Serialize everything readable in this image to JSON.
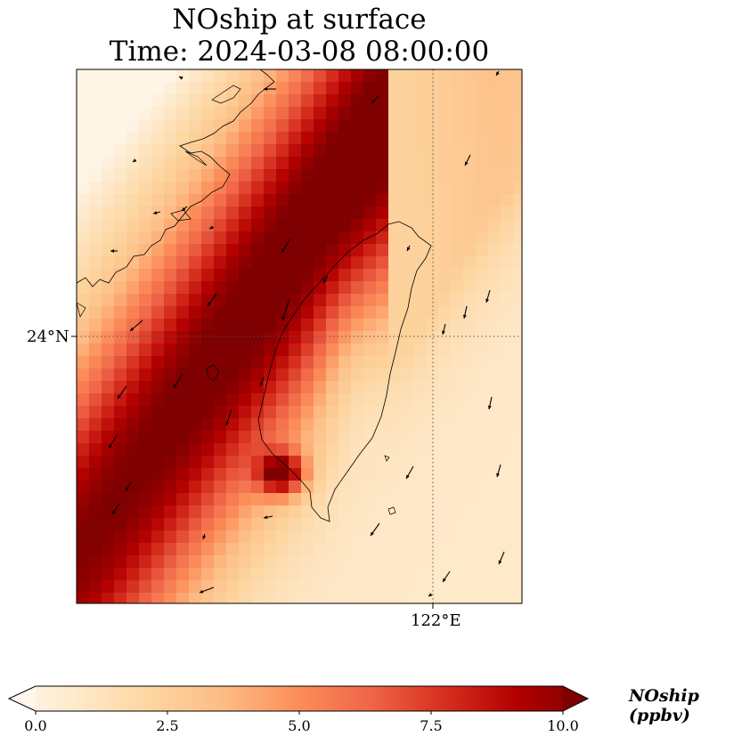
{
  "title": {
    "line1": "NOship at surface",
    "line2": "Time: 2024-03-08 08:00:00"
  },
  "axes": {
    "lat_label": "24°N",
    "lon_label": "122°E"
  },
  "colorbar": {
    "label": "NOship (ppbv)",
    "ticks": [
      "0.0",
      "2.5",
      "5.0",
      "7.5",
      "10.0"
    ],
    "range": [
      0,
      10
    ],
    "extend": "both",
    "colormap": [
      "#fff7ec",
      "#fee8c8",
      "#fdd49e",
      "#fdbb84",
      "#fc8d59",
      "#ef6548",
      "#d7301f",
      "#b30000",
      "#7f0000"
    ]
  },
  "chart_data": {
    "type": "heatmap",
    "title": "NOship at surface\nTime: 2024-03-08 08:00:00",
    "variable": "NOship",
    "units": "ppbv",
    "value_range": [
      0,
      10
    ],
    "gridlines": {
      "latitude": "24°N",
      "longitude": "122°E",
      "style": "dotted"
    },
    "features": [
      "coastline of Taiwan",
      "coastline of mainland China (Fujian)",
      "wind vectors"
    ],
    "description_values": {
      "high_band_northwest": 9.5,
      "southwest_taiwan_hotspot": 9.5,
      "taiwan_interior": 1.5,
      "east_of_taiwan": 2.5
    }
  }
}
